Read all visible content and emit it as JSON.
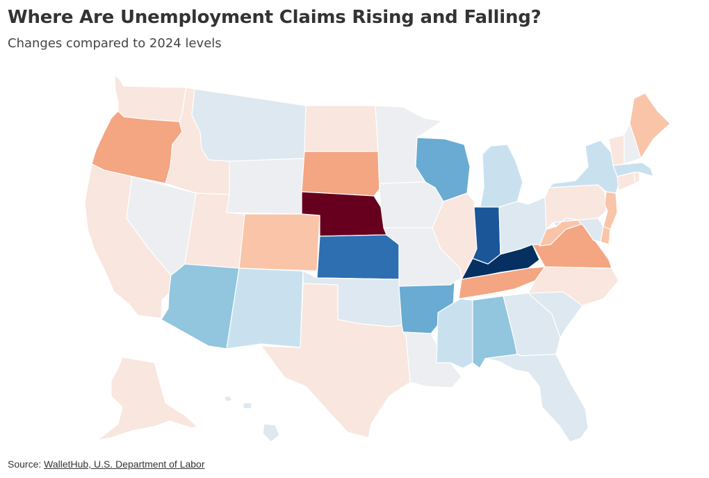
{
  "header": {
    "title": "Where Are Unemployment Claims Rising and Falling?",
    "subtitle": "Changes compared to 2024 levels"
  },
  "footer": {
    "source_label": "Source: ",
    "source_link": "WalletHub, U.S. Department of Labor"
  },
  "colors": {
    "strong_increase": "#67001f",
    "increase": "#f4a582",
    "moderate_increase": "#f9c4a7",
    "slight_increase": "#f9e6de",
    "neutral": "#eceef1",
    "slight_decrease": "#dde8f0",
    "decrease_light": "#c9e1ef",
    "decrease": "#92c5de",
    "decrease_mid": "#69abd2",
    "strong_decrease": "#2d6fb1",
    "stronger_decrease": "#1a5698",
    "strongest_decrease": "#053061"
  },
  "states": [
    {
      "abbr": "WA",
      "level": "slight_increase"
    },
    {
      "abbr": "OR",
      "level": "increase"
    },
    {
      "abbr": "CA",
      "level": "slight_increase"
    },
    {
      "abbr": "ID",
      "level": "slight_increase"
    },
    {
      "abbr": "NV",
      "level": "neutral"
    },
    {
      "abbr": "MT",
      "level": "slight_decrease"
    },
    {
      "abbr": "WY",
      "level": "neutral"
    },
    {
      "abbr": "UT",
      "level": "slight_increase"
    },
    {
      "abbr": "AZ",
      "level": "decrease"
    },
    {
      "abbr": "CO",
      "level": "moderate_increase"
    },
    {
      "abbr": "NM",
      "level": "decrease_light"
    },
    {
      "abbr": "ND",
      "level": "slight_increase"
    },
    {
      "abbr": "SD",
      "level": "increase"
    },
    {
      "abbr": "NE",
      "level": "strong_increase"
    },
    {
      "abbr": "KS",
      "level": "strong_decrease"
    },
    {
      "abbr": "OK",
      "level": "slight_decrease"
    },
    {
      "abbr": "TX",
      "level": "slight_increase"
    },
    {
      "abbr": "MN",
      "level": "neutral"
    },
    {
      "abbr": "IA",
      "level": "neutral"
    },
    {
      "abbr": "MO",
      "level": "neutral"
    },
    {
      "abbr": "AR",
      "level": "decrease_mid"
    },
    {
      "abbr": "LA",
      "level": "neutral"
    },
    {
      "abbr": "WI",
      "level": "decrease_mid"
    },
    {
      "abbr": "IL",
      "level": "slight_increase"
    },
    {
      "abbr": "MI",
      "level": "decrease_light"
    },
    {
      "abbr": "IN",
      "level": "stronger_decrease"
    },
    {
      "abbr": "OH",
      "level": "slight_decrease"
    },
    {
      "abbr": "KY",
      "level": "strongest_decrease"
    },
    {
      "abbr": "TN",
      "level": "increase"
    },
    {
      "abbr": "MS",
      "level": "decrease_light"
    },
    {
      "abbr": "AL",
      "level": "decrease"
    },
    {
      "abbr": "GA",
      "level": "slight_decrease"
    },
    {
      "abbr": "FL",
      "level": "slight_decrease"
    },
    {
      "abbr": "SC",
      "level": "slight_decrease"
    },
    {
      "abbr": "NC",
      "level": "slight_increase"
    },
    {
      "abbr": "VA",
      "level": "increase"
    },
    {
      "abbr": "WV",
      "level": "moderate_increase"
    },
    {
      "abbr": "PA",
      "level": "slight_increase"
    },
    {
      "abbr": "NY",
      "level": "decrease_light"
    },
    {
      "abbr": "NJ",
      "level": "moderate_increase"
    },
    {
      "abbr": "DE",
      "level": "moderate_increase"
    },
    {
      "abbr": "MD",
      "level": "slight_decrease"
    },
    {
      "abbr": "CT",
      "level": "slight_increase"
    },
    {
      "abbr": "RI",
      "level": "slight_increase"
    },
    {
      "abbr": "MA",
      "level": "decrease_light"
    },
    {
      "abbr": "VT",
      "level": "slight_increase"
    },
    {
      "abbr": "NH",
      "level": "neutral"
    },
    {
      "abbr": "ME",
      "level": "moderate_increase"
    },
    {
      "abbr": "AK",
      "level": "slight_increase"
    },
    {
      "abbr": "HI",
      "level": "slight_decrease"
    }
  ]
}
